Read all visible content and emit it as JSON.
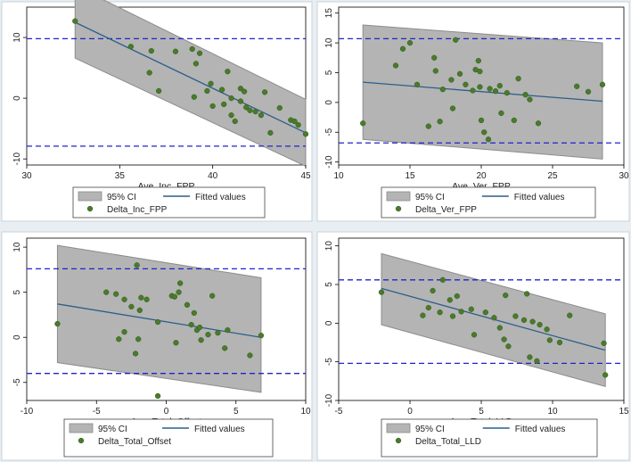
{
  "chart_data": [
    {
      "type": "scatter",
      "xlabel": "Ave_Inc_FPP",
      "xlim": [
        30,
        45
      ],
      "ylim": [
        -11,
        15
      ],
      "x_ticks": [
        30,
        35,
        40,
        45
      ],
      "y_ticks": [
        -10,
        0,
        10
      ],
      "limits_of_agreement": [
        9.8,
        -7.9
      ],
      "fit": {
        "x": [
          32.6,
          45
        ],
        "y": [
          12.5,
          -5.7
        ]
      },
      "ci": {
        "x": [
          32.6,
          45
        ],
        "upper": [
          18.5,
          -0.2
        ],
        "lower": [
          6.6,
          -11.2
        ]
      },
      "legend": {
        "ci": "95% CI",
        "fit": "Fitted values",
        "points": "Delta_Inc_FPP"
      },
      "points": [
        [
          32.6,
          12.7
        ],
        [
          35.6,
          8.5
        ],
        [
          36.7,
          7.8
        ],
        [
          36.6,
          4.2
        ],
        [
          37.1,
          1.2
        ],
        [
          38.0,
          7.7
        ],
        [
          38.9,
          8.1
        ],
        [
          39.1,
          5.7
        ],
        [
          39.3,
          7.4
        ],
        [
          39.0,
          0.2
        ],
        [
          39.7,
          1.2
        ],
        [
          39.9,
          2.4
        ],
        [
          40.0,
          -1.3
        ],
        [
          40.5,
          1.4
        ],
        [
          40.6,
          -1.0
        ],
        [
          40.8,
          4.4
        ],
        [
          41.0,
          0.0
        ],
        [
          41.0,
          -2.8
        ],
        [
          41.2,
          -3.8
        ],
        [
          41.5,
          -0.5
        ],
        [
          41.7,
          1.1
        ],
        [
          41.5,
          1.6
        ],
        [
          41.8,
          -1.5
        ],
        [
          42.0,
          -2.0
        ],
        [
          42.3,
          -2.2
        ],
        [
          42.6,
          -2.8
        ],
        [
          42.8,
          1.0
        ],
        [
          43.1,
          -5.7
        ],
        [
          43.6,
          -1.6
        ],
        [
          44.2,
          -3.6
        ],
        [
          44.4,
          -3.8
        ],
        [
          44.6,
          -4.4
        ],
        [
          45.0,
          -5.9
        ]
      ]
    },
    {
      "type": "scatter",
      "xlabel": "Ave_Ver_FPP",
      "xlim": [
        10,
        30
      ],
      "ylim": [
        -10.5,
        16
      ],
      "x_ticks": [
        10,
        15,
        20,
        25,
        30
      ],
      "y_ticks": [
        -10,
        -5,
        0,
        5,
        10,
        15
      ],
      "limits_of_agreement": [
        10.7,
        -6.8
      ],
      "fit": {
        "x": [
          11.7,
          28.5
        ],
        "y": [
          3.4,
          0.2
        ]
      },
      "ci": {
        "x": [
          11.7,
          28.5
        ],
        "upper": [
          13.0,
          10.0
        ],
        "lower": [
          -6.2,
          -9.5
        ]
      },
      "legend": {
        "ci": "95% CI",
        "fit": "Fitted values",
        "points": "Delta_Ver_FPP"
      },
      "points": [
        [
          11.7,
          -3.5
        ],
        [
          14.0,
          6.2
        ],
        [
          14.5,
          9.0
        ],
        [
          15.0,
          10.0
        ],
        [
          15.5,
          3.0
        ],
        [
          16.3,
          -4.0
        ],
        [
          16.7,
          7.5
        ],
        [
          16.8,
          5.3
        ],
        [
          17.1,
          -3.2
        ],
        [
          17.3,
          2.2
        ],
        [
          17.9,
          3.8
        ],
        [
          18.0,
          -1.0
        ],
        [
          18.2,
          10.5
        ],
        [
          18.5,
          4.8
        ],
        [
          18.9,
          3.0
        ],
        [
          19.4,
          2.0
        ],
        [
          19.6,
          5.5
        ],
        [
          19.8,
          7.0
        ],
        [
          19.9,
          5.2
        ],
        [
          19.9,
          2.6
        ],
        [
          20.0,
          -3.0
        ],
        [
          20.2,
          -5.0
        ],
        [
          20.5,
          -6.2
        ],
        [
          20.6,
          2.3
        ],
        [
          21.0,
          1.9
        ],
        [
          21.3,
          2.8
        ],
        [
          21.4,
          -1.8
        ],
        [
          21.8,
          1.6
        ],
        [
          22.3,
          -3.0
        ],
        [
          22.6,
          4.0
        ],
        [
          23.1,
          1.3
        ],
        [
          23.4,
          0.5
        ],
        [
          24.0,
          -3.5
        ],
        [
          26.7,
          2.7
        ],
        [
          27.5,
          1.8
        ],
        [
          28.5,
          3.0
        ]
      ]
    },
    {
      "type": "scatter",
      "xlabel": "Ave_Total_Offset",
      "xlim": [
        -10,
        10
      ],
      "ylim": [
        -7,
        11
      ],
      "x_ticks": [
        -10,
        -5,
        0,
        5,
        10
      ],
      "y_ticks": [
        -5,
        0,
        5,
        10
      ],
      "limits_of_agreement": [
        7.6,
        -4.0
      ],
      "fit": {
        "x": [
          -7.8,
          6.8
        ],
        "y": [
          3.7,
          0.0
        ]
      },
      "ci": {
        "x": [
          -7.8,
          6.8
        ],
        "upper": [
          10.2,
          6.6
        ],
        "lower": [
          -2.8,
          -6.1
        ]
      },
      "legend": {
        "ci": "95% CI",
        "fit": "Fitted values",
        "points": "Delta_Total_Offset"
      },
      "points": [
        [
          -7.8,
          1.5
        ],
        [
          -4.3,
          5.0
        ],
        [
          -3.6,
          4.8
        ],
        [
          -3.4,
          -0.2
        ],
        [
          -3.0,
          4.2
        ],
        [
          -3.0,
          0.6
        ],
        [
          -2.5,
          3.4
        ],
        [
          -2.2,
          -1.8
        ],
        [
          -2.1,
          8.0
        ],
        [
          -2.0,
          -0.2
        ],
        [
          -1.9,
          3.0
        ],
        [
          -1.8,
          4.4
        ],
        [
          -1.4,
          4.2
        ],
        [
          -0.6,
          -6.5
        ],
        [
          -0.6,
          1.7
        ],
        [
          0.4,
          4.6
        ],
        [
          0.6,
          4.5
        ],
        [
          0.7,
          -0.6
        ],
        [
          0.9,
          5.0
        ],
        [
          1.0,
          6.0
        ],
        [
          1.5,
          3.6
        ],
        [
          1.8,
          1.4
        ],
        [
          2.0,
          2.7
        ],
        [
          2.2,
          0.8
        ],
        [
          2.4,
          1.1
        ],
        [
          2.5,
          -0.3
        ],
        [
          3.0,
          0.3
        ],
        [
          3.3,
          4.6
        ],
        [
          3.7,
          0.5
        ],
        [
          4.2,
          -1.2
        ],
        [
          4.4,
          0.8
        ],
        [
          6.0,
          -2.0
        ],
        [
          6.8,
          0.2
        ]
      ]
    },
    {
      "type": "scatter",
      "xlabel": "Ave_Total_LLD",
      "xlim": [
        -5,
        15
      ],
      "ylim": [
        -10,
        11
      ],
      "x_ticks": [
        -5,
        0,
        5,
        10,
        15
      ],
      "y_ticks": [
        -10,
        -5,
        0,
        5,
        10
      ],
      "limits_of_agreement": [
        5.6,
        -5.2
      ],
      "fit": {
        "x": [
          -2.0,
          13.7
        ],
        "y": [
          4.5,
          -3.5
        ]
      },
      "ci": {
        "x": [
          -2.0,
          13.7
        ],
        "upper": [
          9.0,
          1.2
        ],
        "lower": [
          -0.2,
          -8.2
        ]
      },
      "legend": {
        "ci": "95% CI",
        "fit": "Fitted values",
        "points": "Delta_Total_LLD"
      },
      "points": [
        [
          -2.0,
          4.0
        ],
        [
          0.9,
          1.0
        ],
        [
          1.3,
          2.0
        ],
        [
          1.6,
          4.2
        ],
        [
          2.1,
          1.4
        ],
        [
          2.3,
          5.6
        ],
        [
          2.8,
          3.0
        ],
        [
          3.0,
          0.9
        ],
        [
          3.3,
          3.5
        ],
        [
          3.6,
          1.5
        ],
        [
          4.3,
          1.8
        ],
        [
          4.5,
          -1.5
        ],
        [
          5.3,
          1.4
        ],
        [
          5.9,
          0.7
        ],
        [
          6.3,
          -0.6
        ],
        [
          6.6,
          -2.1
        ],
        [
          6.7,
          3.6
        ],
        [
          6.9,
          -3.0
        ],
        [
          7.4,
          0.9
        ],
        [
          8.0,
          0.4
        ],
        [
          8.2,
          3.8
        ],
        [
          8.4,
          -4.4
        ],
        [
          8.6,
          0.2
        ],
        [
          8.9,
          -4.9
        ],
        [
          9.1,
          -0.2
        ],
        [
          9.6,
          -0.8
        ],
        [
          9.8,
          -2.2
        ],
        [
          10.5,
          -2.5
        ],
        [
          11.2,
          1.0
        ],
        [
          13.6,
          -2.6
        ],
        [
          13.7,
          -6.7
        ]
      ]
    }
  ]
}
